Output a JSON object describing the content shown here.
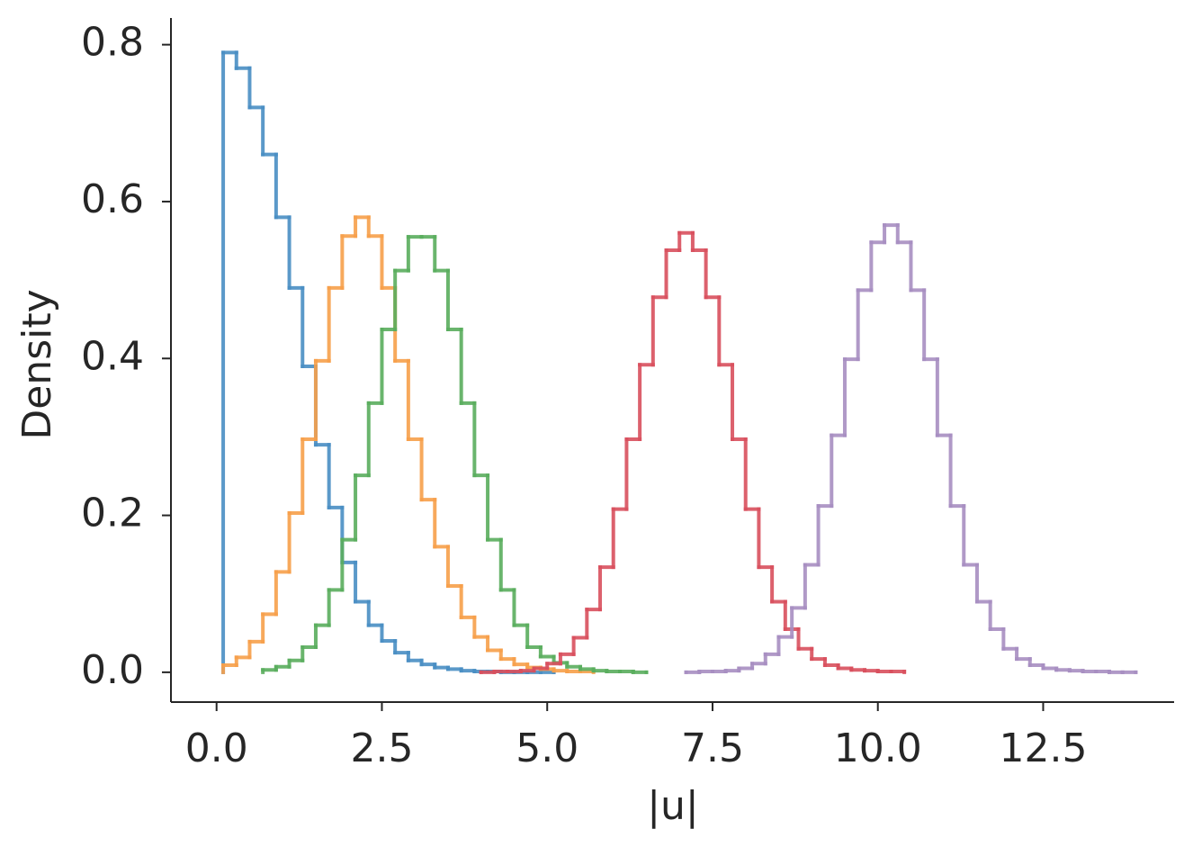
{
  "chart_data": {
    "type": "histogram",
    "xlabel": "|u|",
    "ylabel": "Density",
    "xlim": [
      -0.69,
      14.48
    ],
    "ylim": [
      -0.038,
      0.834
    ],
    "xticks": [
      {
        "value": 0,
        "label": "0.0"
      },
      {
        "value": 2.5,
        "label": "2.5"
      },
      {
        "value": 5,
        "label": "5.0"
      },
      {
        "value": 7.5,
        "label": "7.5"
      },
      {
        "value": 10,
        "label": "10.0"
      },
      {
        "value": 12.5,
        "label": "12.5"
      }
    ],
    "yticks": [
      {
        "value": 0,
        "label": "0.0"
      },
      0.2,
      0.4,
      0.6,
      0.8
    ],
    "grid": false,
    "series": [
      {
        "color": "#4a8fc4",
        "bins": [
          0.1,
          0.3,
          0.5,
          0.7,
          0.9,
          1.1,
          1.3,
          1.5,
          1.7,
          1.9,
          2.1,
          2.3,
          2.5,
          2.7,
          2.9,
          3.1,
          3.3,
          3.5,
          3.7,
          3.9,
          4.1,
          4.3,
          4.5,
          4.7,
          4.9,
          5.1
        ],
        "values": [
          0.79,
          0.77,
          0.72,
          0.66,
          0.58,
          0.49,
          0.39,
          0.29,
          0.21,
          0.14,
          0.09,
          0.06,
          0.04,
          0.025,
          0.015,
          0.01,
          0.006,
          0.004,
          0.002,
          0.001,
          0.001,
          0,
          0,
          0,
          0
        ]
      },
      {
        "color": "#f7a04b",
        "bins": [
          0.1,
          0.3,
          0.5,
          0.7,
          0.9,
          1.1,
          1.3,
          1.5,
          1.7,
          1.9,
          2.1,
          2.3,
          2.5,
          2.7,
          2.9,
          3.1,
          3.3,
          3.5,
          3.7,
          3.9,
          4.1,
          4.3,
          4.5,
          4.7,
          4.9,
          5.1,
          5.3,
          5.5,
          5.7
        ],
        "values": [
          0.009,
          0.019,
          0.039,
          0.074,
          0.128,
          0.203,
          0.297,
          0.397,
          0.49,
          0.556,
          0.58,
          0.556,
          0.49,
          0.397,
          0.297,
          0.22,
          0.16,
          0.11,
          0.07,
          0.045,
          0.028,
          0.017,
          0.01,
          0.006,
          0.004,
          0.002,
          0.001,
          0.001
        ]
      },
      {
        "color": "#5aae5e",
        "bins": [
          0.7,
          0.9,
          1.1,
          1.3,
          1.5,
          1.7,
          1.9,
          2.1,
          2.3,
          2.5,
          2.7,
          2.9,
          3.1,
          3.3,
          3.5,
          3.7,
          3.9,
          4.1,
          4.3,
          4.5,
          4.7,
          4.9,
          5.1,
          5.3,
          5.5,
          5.7,
          5.9,
          6.1,
          6.3,
          6.5
        ],
        "values": [
          0.003,
          0.007,
          0.015,
          0.032,
          0.06,
          0.105,
          0.169,
          0.251,
          0.343,
          0.437,
          0.512,
          0.555,
          0.555,
          0.512,
          0.437,
          0.343,
          0.251,
          0.169,
          0.105,
          0.06,
          0.032,
          0.02,
          0.012,
          0.007,
          0.004,
          0.002,
          0.001,
          0.001,
          0
        ]
      },
      {
        "color": "#d9505e",
        "bins": [
          4.0,
          4.2,
          4.4,
          4.6,
          4.8,
          5.0,
          5.2,
          5.4,
          5.6,
          5.8,
          6.0,
          6.2,
          6.4,
          6.6,
          6.8,
          7.0,
          7.2,
          7.4,
          7.6,
          7.8,
          8.0,
          8.2,
          8.4,
          8.6,
          8.8,
          9.0,
          9.2,
          9.4,
          9.6,
          9.8,
          10.0,
          10.2,
          10.4
        ],
        "values": [
          0,
          0.001,
          0.001,
          0.002,
          0.005,
          0.011,
          0.023,
          0.044,
          0.08,
          0.134,
          0.208,
          0.297,
          0.392,
          0.478,
          0.538,
          0.56,
          0.538,
          0.478,
          0.392,
          0.297,
          0.208,
          0.134,
          0.09,
          0.055,
          0.03,
          0.017,
          0.009,
          0.005,
          0.003,
          0.002,
          0.001,
          0.001
        ]
      },
      {
        "color": "#a88fc2",
        "bins": [
          7.1,
          7.3,
          7.5,
          7.7,
          7.9,
          8.1,
          8.3,
          8.5,
          8.7,
          8.9,
          9.1,
          9.3,
          9.5,
          9.7,
          9.9,
          10.1,
          10.3,
          10.5,
          10.7,
          10.9,
          11.1,
          11.3,
          11.5,
          11.7,
          11.9,
          12.1,
          12.3,
          12.5,
          12.7,
          12.9,
          13.1,
          13.3,
          13.5,
          13.7,
          13.9
        ],
        "values": [
          0,
          0.001,
          0.001,
          0.002,
          0.005,
          0.011,
          0.023,
          0.045,
          0.082,
          0.137,
          0.212,
          0.302,
          0.399,
          0.487,
          0.548,
          0.57,
          0.548,
          0.487,
          0.399,
          0.302,
          0.212,
          0.137,
          0.09,
          0.055,
          0.03,
          0.017,
          0.009,
          0.005,
          0.003,
          0.002,
          0.001,
          0.001,
          0,
          0
        ]
      }
    ]
  }
}
